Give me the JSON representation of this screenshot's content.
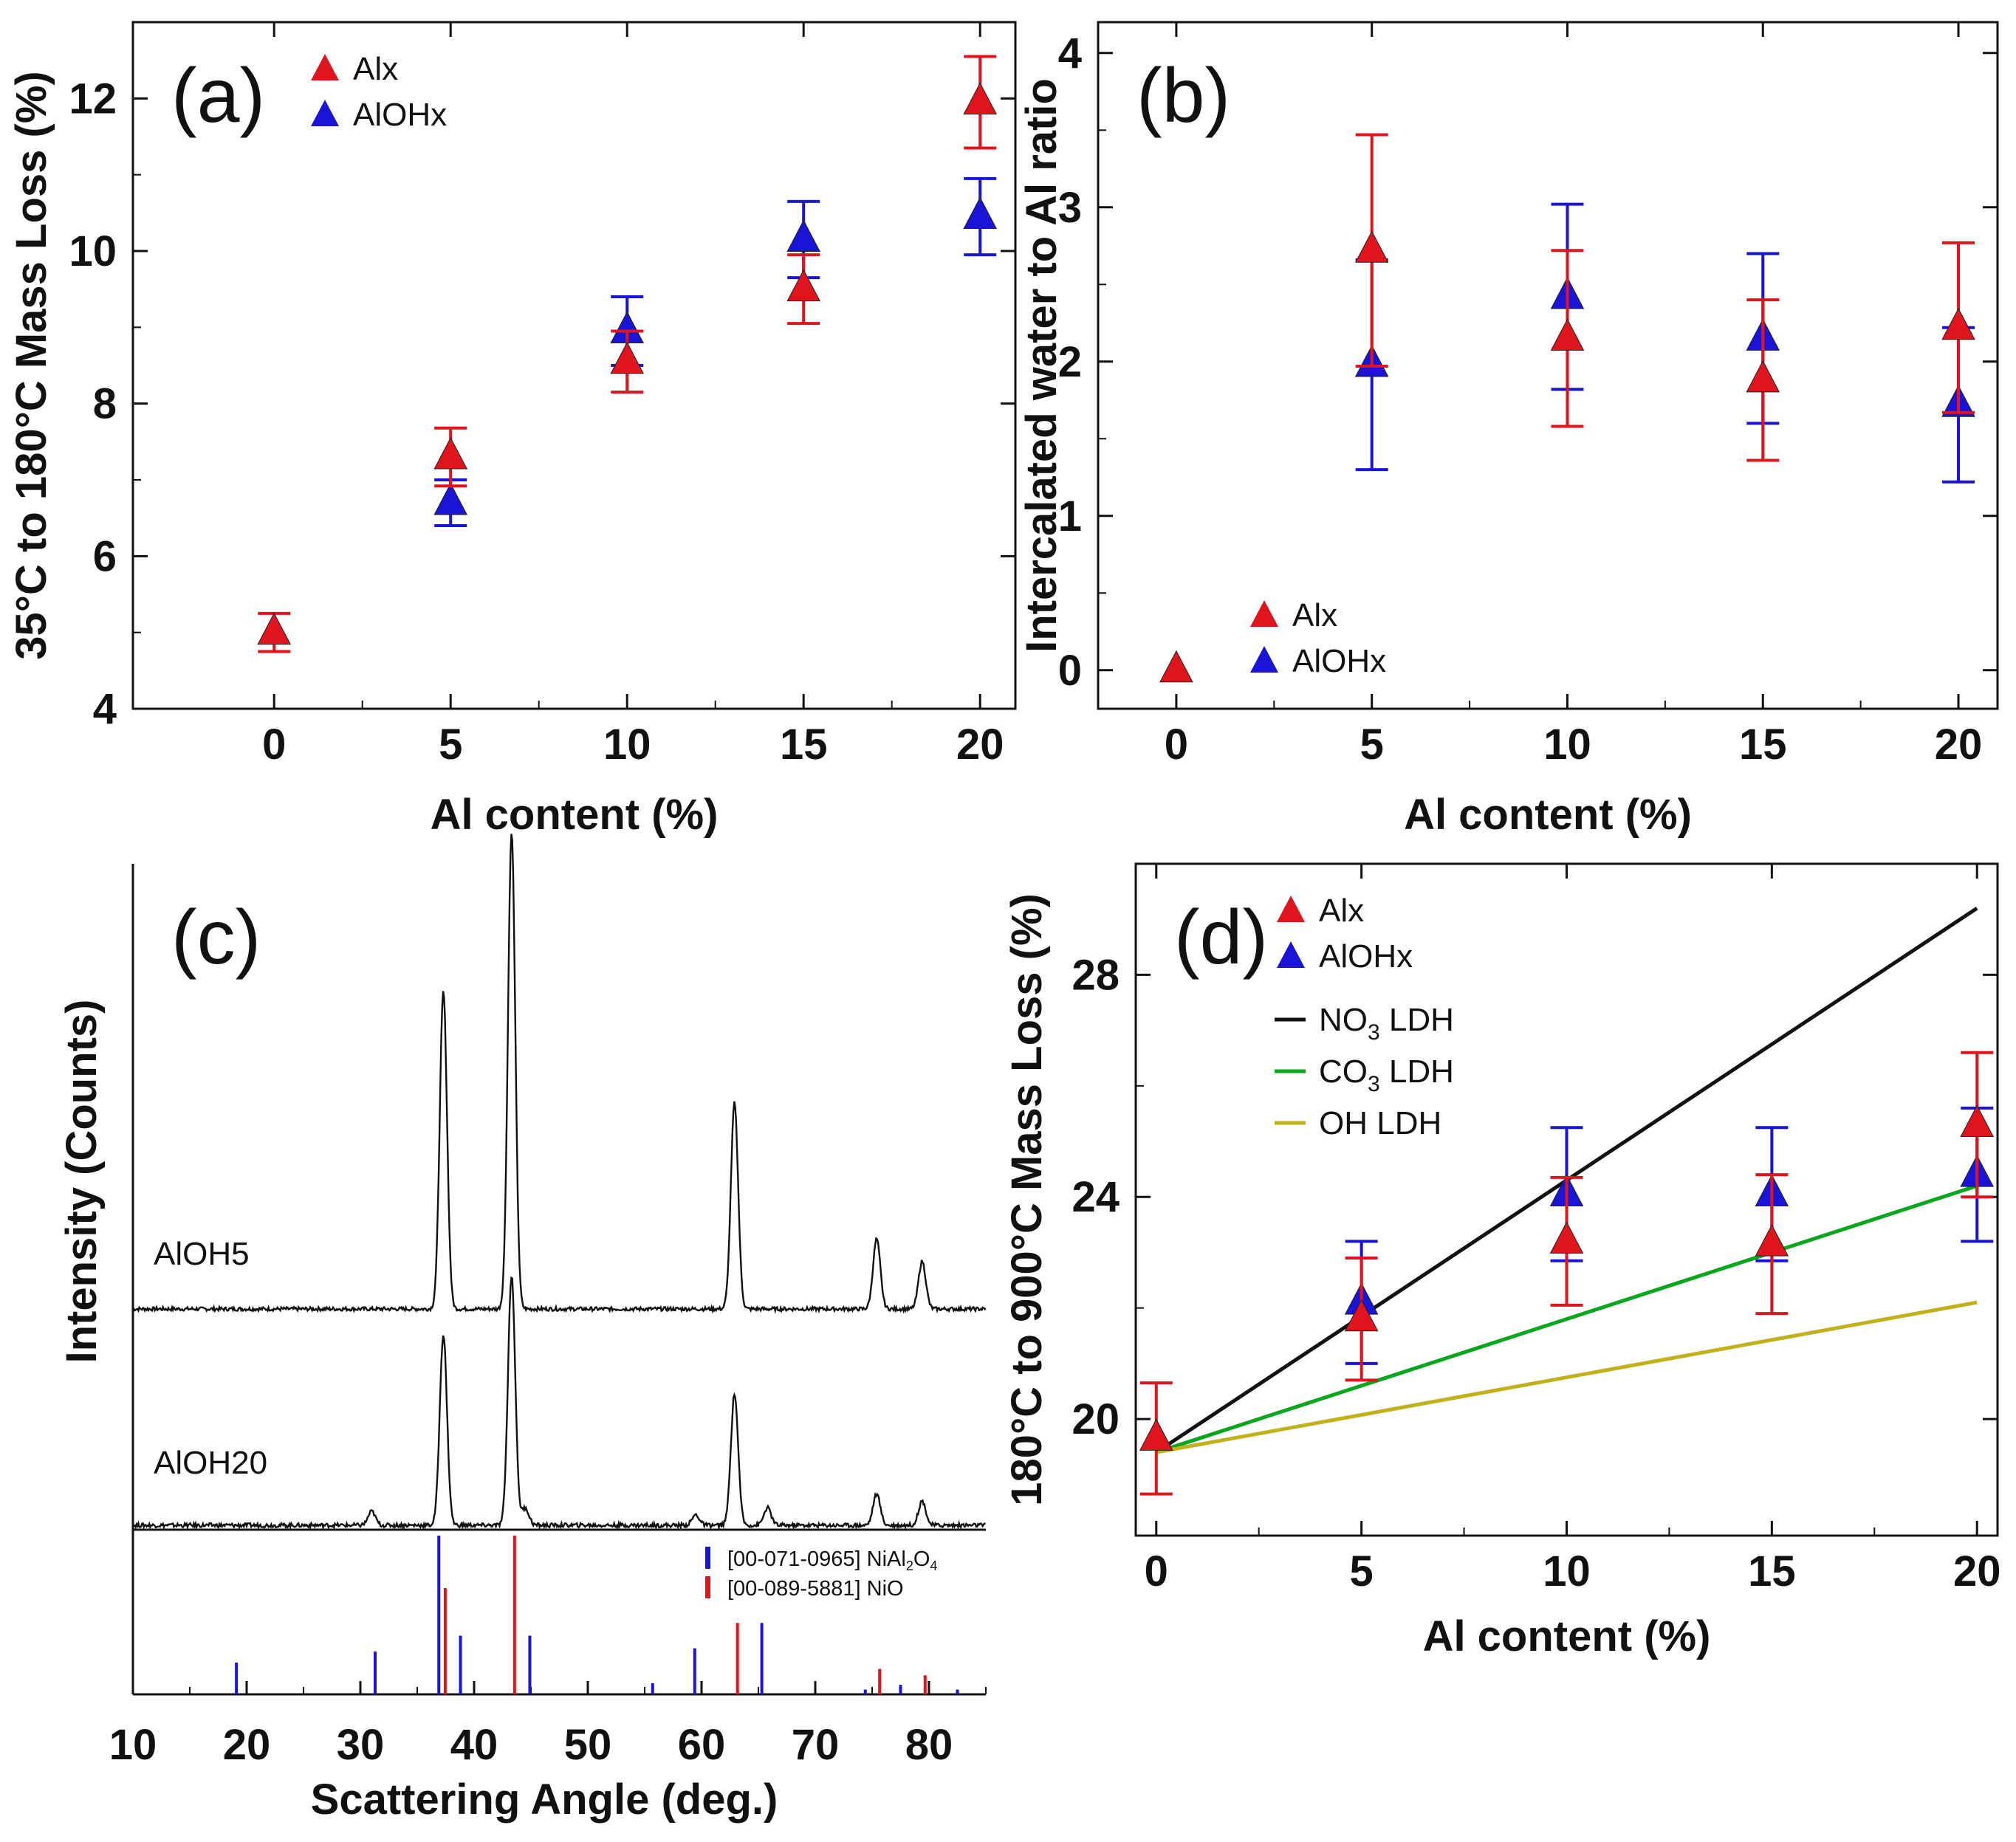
{
  "chart_data": [
    {
      "id": "a",
      "panel_label": "(a)",
      "type": "scatter",
      "xlabel": "Al content (%)",
      "ylabel": "35°C to 180°C Mass Loss (%)",
      "xlim": [
        -4,
        21
      ],
      "ylim": [
        4,
        13
      ],
      "xticks": [
        "0",
        "5",
        "10",
        "15",
        "20"
      ],
      "yticks": [
        "4",
        "6",
        "8",
        "10",
        "12"
      ],
      "legend": {
        "placement": "top-left",
        "entries": [
          "Alx",
          "AlOHx"
        ]
      },
      "series": [
        {
          "name": "Alx",
          "color": "#e0141c",
          "marker": "triangle",
          "points": [
            {
              "x": 0,
              "y": 5.0,
              "err": 0.25
            },
            {
              "x": 5,
              "y": 7.3,
              "err": 0.38
            },
            {
              "x": 10,
              "y": 8.55,
              "err": 0.4
            },
            {
              "x": 15,
              "y": 9.5,
              "err": 0.45
            },
            {
              "x": 20,
              "y": 11.95,
              "err": 0.6
            }
          ]
        },
        {
          "name": "AlOHx",
          "color": "#1a14d6",
          "marker": "triangle",
          "points": [
            {
              "x": 5,
              "y": 6.7,
              "err": 0.3
            },
            {
              "x": 10,
              "y": 8.95,
              "err": 0.45
            },
            {
              "x": 15,
              "y": 10.15,
              "err": 0.5
            },
            {
              "x": 20,
              "y": 10.45,
              "err": 0.5
            }
          ]
        }
      ]
    },
    {
      "id": "b",
      "panel_label": "(b)",
      "type": "scatter",
      "xlabel": "Al content (%)",
      "ylabel": "Intercalated water to Al ratio",
      "xlim": [
        -2,
        21
      ],
      "ylim": [
        -0.25,
        4.2
      ],
      "xticks": [
        "0",
        "5",
        "10",
        "15",
        "20"
      ],
      "yticks": [
        "0",
        "1",
        "2",
        "3",
        "4"
      ],
      "legend": {
        "placement": "bottom-left",
        "entries": [
          "Alx",
          "AlOHx"
        ]
      },
      "series": [
        {
          "name": "Alx",
          "color": "#e0141c",
          "marker": "triangle",
          "points": [
            {
              "x": 0,
              "y": 0.0,
              "err": 0
            },
            {
              "x": 5,
              "y": 2.72,
              "err": 0.75
            },
            {
              "x": 10,
              "y": 2.15,
              "err": 0.57
            },
            {
              "x": 15,
              "y": 1.88,
              "err": 0.52
            },
            {
              "x": 20,
              "y": 2.22,
              "err": 0.55
            }
          ]
        },
        {
          "name": "AlOHx",
          "color": "#1a14d6",
          "marker": "triangle",
          "points": [
            {
              "x": 5,
              "y": 1.98,
              "err": 0.68
            },
            {
              "x": 10,
              "y": 2.42,
              "err": 0.6
            },
            {
              "x": 15,
              "y": 2.15,
              "err": 0.55
            },
            {
              "x": 20,
              "y": 1.72,
              "err": 0.5
            }
          ]
        }
      ]
    },
    {
      "id": "c",
      "panel_label": "(c)",
      "type": "line",
      "xlabel": "Scattering Angle (deg.)",
      "ylabel": "Intensity (Counts)",
      "xlim": [
        10,
        85
      ],
      "xticks": [
        "10",
        "20",
        "30",
        "40",
        "50",
        "60",
        "70",
        "80"
      ],
      "traces": [
        {
          "label": "AlOH5",
          "color": "#111111",
          "baseline": 0.0,
          "peaks": [
            [
              37.3,
              1.0
            ],
            [
              43.3,
              1.5
            ],
            [
              62.9,
              0.65
            ],
            [
              75.4,
              0.22
            ],
            [
              79.4,
              0.15
            ]
          ]
        },
        {
          "label": "AlOH20",
          "color": "#111111",
          "baseline": 0.0,
          "peaks": [
            [
              31.0,
              0.04
            ],
            [
              37.3,
              0.55
            ],
            [
              43.3,
              0.72
            ],
            [
              44.5,
              0.05
            ],
            [
              59.5,
              0.03
            ],
            [
              62.9,
              0.38
            ],
            [
              65.8,
              0.05
            ],
            [
              75.4,
              0.09
            ],
            [
              79.4,
              0.07
            ]
          ]
        }
      ],
      "reference_legend": [
        {
          "text": "[00-071-0965] NiAl",
          "sub": "2",
          "text2": "O",
          "sub2": "4",
          "color": "#1a14d6"
        },
        {
          "text": "[00-089-5881] NiO",
          "color": "#e0141c"
        }
      ],
      "reference_sticks": [
        {
          "name": "[00-071-0965] NiAl2O4",
          "color": "#1a14d6",
          "sticks": [
            [
              19.1,
              0.2
            ],
            [
              31.3,
              0.27
            ],
            [
              36.9,
              1.0
            ],
            [
              38.8,
              0.37
            ],
            [
              44.9,
              0.37
            ],
            [
              55.7,
              0.07
            ],
            [
              59.4,
              0.29
            ],
            [
              65.3,
              0.45
            ],
            [
              74.4,
              0.03
            ],
            [
              77.5,
              0.06
            ],
            [
              82.5,
              0.03
            ]
          ]
        },
        {
          "name": "[00-089-5881] NiO",
          "color": "#e0141c",
          "sticks": [
            [
              37.2,
              0.67
            ],
            [
              43.3,
              1.0
            ],
            [
              62.9,
              0.45
            ],
            [
              75.4,
              0.16
            ],
            [
              79.4,
              0.12
            ]
          ]
        }
      ]
    },
    {
      "id": "d",
      "panel_label": "(d)",
      "type": "scatter",
      "xlabel": "Al content (%)",
      "ylabel": "180°C to 900°C Mass Loss (%)",
      "xlim": [
        -0.5,
        20.5
      ],
      "ylim": [
        17.9,
        30
      ],
      "xticks": [
        "0",
        "5",
        "10",
        "15",
        "20"
      ],
      "yticks": [
        "20",
        "24",
        "28"
      ],
      "legend": {
        "placement": "top-left",
        "entries": [
          "Alx",
          "AlOHx",
          "NO3 LDH",
          "CO3 LDH",
          "OH LDH"
        ]
      },
      "lines": [
        {
          "name": "NO3 LDH",
          "label_main": "NO",
          "label_sub": "3",
          "label_tail": " LDH",
          "color": "#111111",
          "x": [
            0,
            20
          ],
          "y": [
            19.4,
            29.2
          ]
        },
        {
          "name": "CO3 LDH",
          "label_main": "CO",
          "label_sub": "3",
          "label_tail": " LDH",
          "color": "#0aa61e",
          "x": [
            0,
            20
          ],
          "y": [
            19.4,
            24.2
          ]
        },
        {
          "name": "OH LDH",
          "label_main": "OH LDH",
          "label_sub": "",
          "label_tail": "",
          "color": "#bfb21c",
          "x": [
            0,
            20
          ],
          "y": [
            19.4,
            22.1
          ]
        }
      ],
      "series": [
        {
          "name": "Alx",
          "color": "#e0141c",
          "marker": "triangle",
          "points": [
            {
              "x": 0,
              "y": 19.65,
              "err": 1.0
            },
            {
              "x": 5,
              "y": 21.8,
              "err": 1.1
            },
            {
              "x": 10,
              "y": 23.2,
              "err": 1.15
            },
            {
              "x": 15,
              "y": 23.15,
              "err": 1.25
            },
            {
              "x": 20,
              "y": 25.3,
              "err": 1.3
            }
          ]
        },
        {
          "name": "AlOHx",
          "color": "#1a14d6",
          "marker": "triangle",
          "points": [
            {
              "x": 5,
              "y": 22.1,
              "err": 1.1
            },
            {
              "x": 10,
              "y": 24.05,
              "err": 1.2
            },
            {
              "x": 15,
              "y": 24.05,
              "err": 1.2
            },
            {
              "x": 20,
              "y": 24.4,
              "err": 1.2
            }
          ]
        }
      ]
    }
  ]
}
